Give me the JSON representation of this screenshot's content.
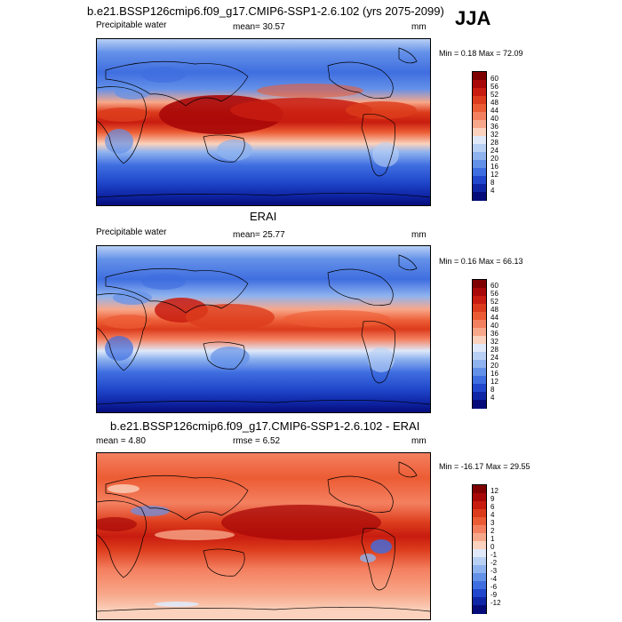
{
  "season": "JJA",
  "panels": [
    {
      "id": "model",
      "title": "b.e21.BSSP126cmip6.f09_g17.CMIP6-SSP1-2.6.102 (yrs 2075-2099)",
      "left_label": "Precipitable water",
      "center_label": "mean=  30.57",
      "units": "mm",
      "minmax": "Min =   0.18 Max =  72.09",
      "colorbar_labels": [
        "60",
        "56",
        "52",
        "48",
        "44",
        "40",
        "36",
        "32",
        "28",
        "24",
        "20",
        "16",
        "12",
        "8",
        "4"
      ],
      "colorbar_colors": [
        "#7f0000",
        "#a80808",
        "#c81c10",
        "#dc3c1c",
        "#ec5c34",
        "#f48060",
        "#f8a88a",
        "#fad2bd",
        "#dfe9f9",
        "#b9d0f5",
        "#8fb3ef",
        "#6491e8",
        "#3f6ee0",
        "#2148cc",
        "#0f26a6",
        "#050c7a"
      ]
    },
    {
      "id": "obs",
      "title": "ERAI",
      "left_label": "Precipitable water",
      "center_label": "mean=  25.77",
      "units": "mm",
      "minmax": "Min =   0.16 Max =  66.13",
      "colorbar_labels": [
        "60",
        "56",
        "52",
        "48",
        "44",
        "40",
        "36",
        "32",
        "28",
        "24",
        "20",
        "16",
        "12",
        "8",
        "4"
      ],
      "colorbar_colors": [
        "#7f0000",
        "#a80808",
        "#c81c10",
        "#dc3c1c",
        "#ec5c34",
        "#f48060",
        "#f8a88a",
        "#fad2bd",
        "#dfe9f9",
        "#b9d0f5",
        "#8fb3ef",
        "#6491e8",
        "#3f6ee0",
        "#2148cc",
        "#0f26a6",
        "#050c7a"
      ]
    },
    {
      "id": "diff",
      "title": "b.e21.BSSP126cmip6.f09_g17.CMIP6-SSP1-2.6.102 - ERAI",
      "left_label": "mean =   4.80",
      "center_label": "rmse =   6.52",
      "units": "mm",
      "minmax": "Min = -16.17 Max =  29.55",
      "colorbar_labels": [
        "12",
        "9",
        "6",
        "4",
        "3",
        "2",
        "1",
        "0",
        "-1",
        "-2",
        "-3",
        "-4",
        "-6",
        "-9",
        "-12"
      ],
      "colorbar_colors": [
        "#7f0000",
        "#a80808",
        "#c81c10",
        "#dc3c1c",
        "#ec5c34",
        "#f48060",
        "#f8a88a",
        "#fad2bd",
        "#dfe9f9",
        "#b9d0f5",
        "#8fb3ef",
        "#6491e8",
        "#3f6ee0",
        "#2148cc",
        "#0f26a6",
        "#050c7a"
      ]
    }
  ]
}
